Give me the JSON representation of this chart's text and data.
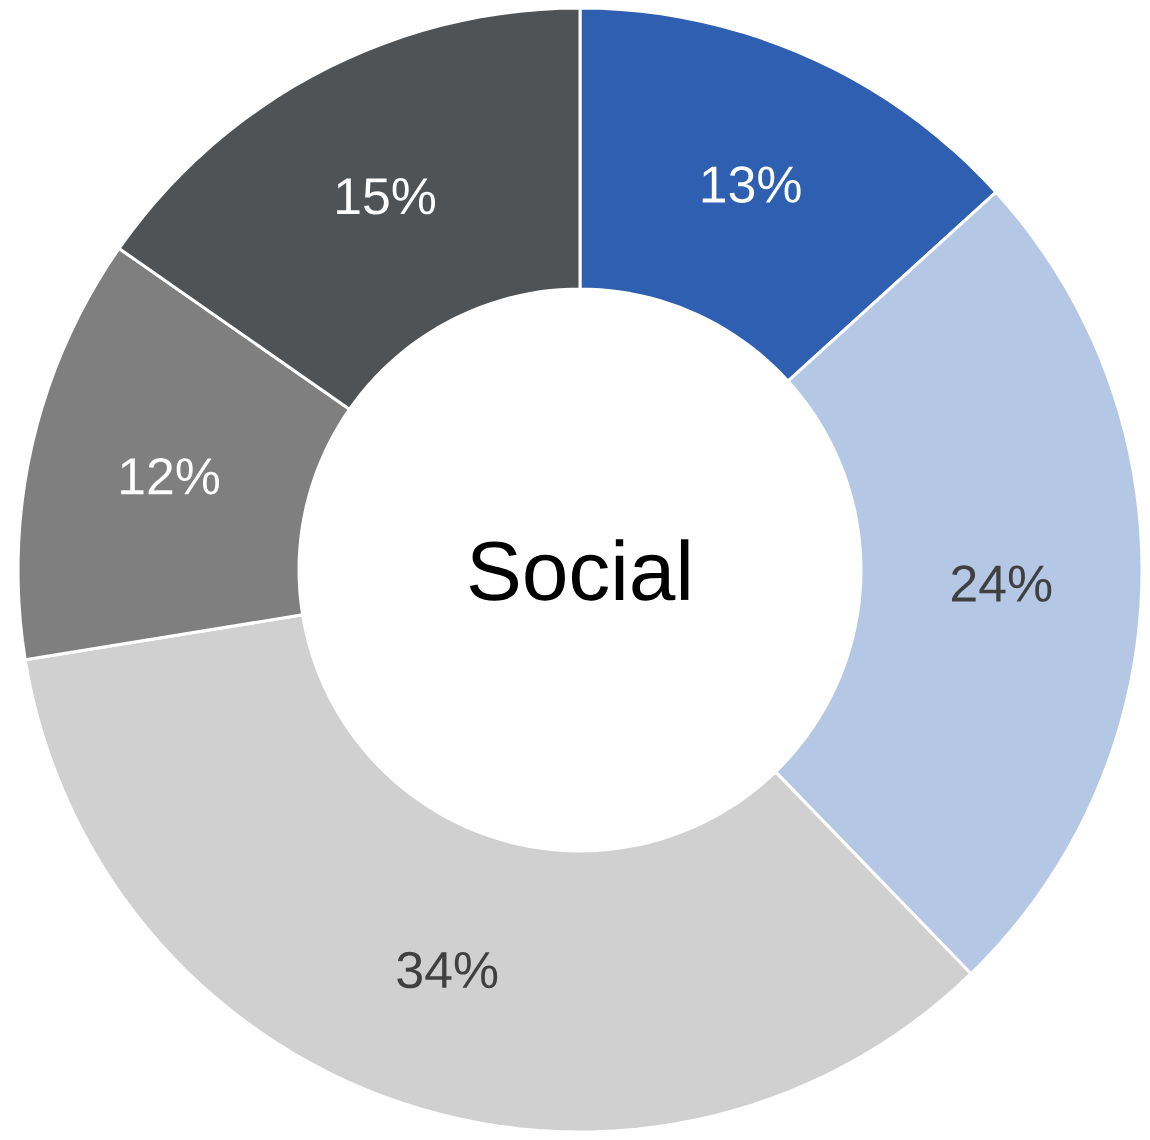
{
  "chart_data": {
    "type": "donut",
    "title": "Social",
    "categories": [
      null,
      null,
      null,
      null,
      null
    ],
    "values": [
      13,
      24,
      34,
      12,
      15
    ],
    "value_labels": [
      "13%",
      "24%",
      "34%",
      "12%",
      "15%"
    ],
    "colors": [
      "#2e5fb0",
      "#b4c8e6",
      "#d0d0d0",
      "#7f7f7f",
      "#505355"
    ]
  }
}
